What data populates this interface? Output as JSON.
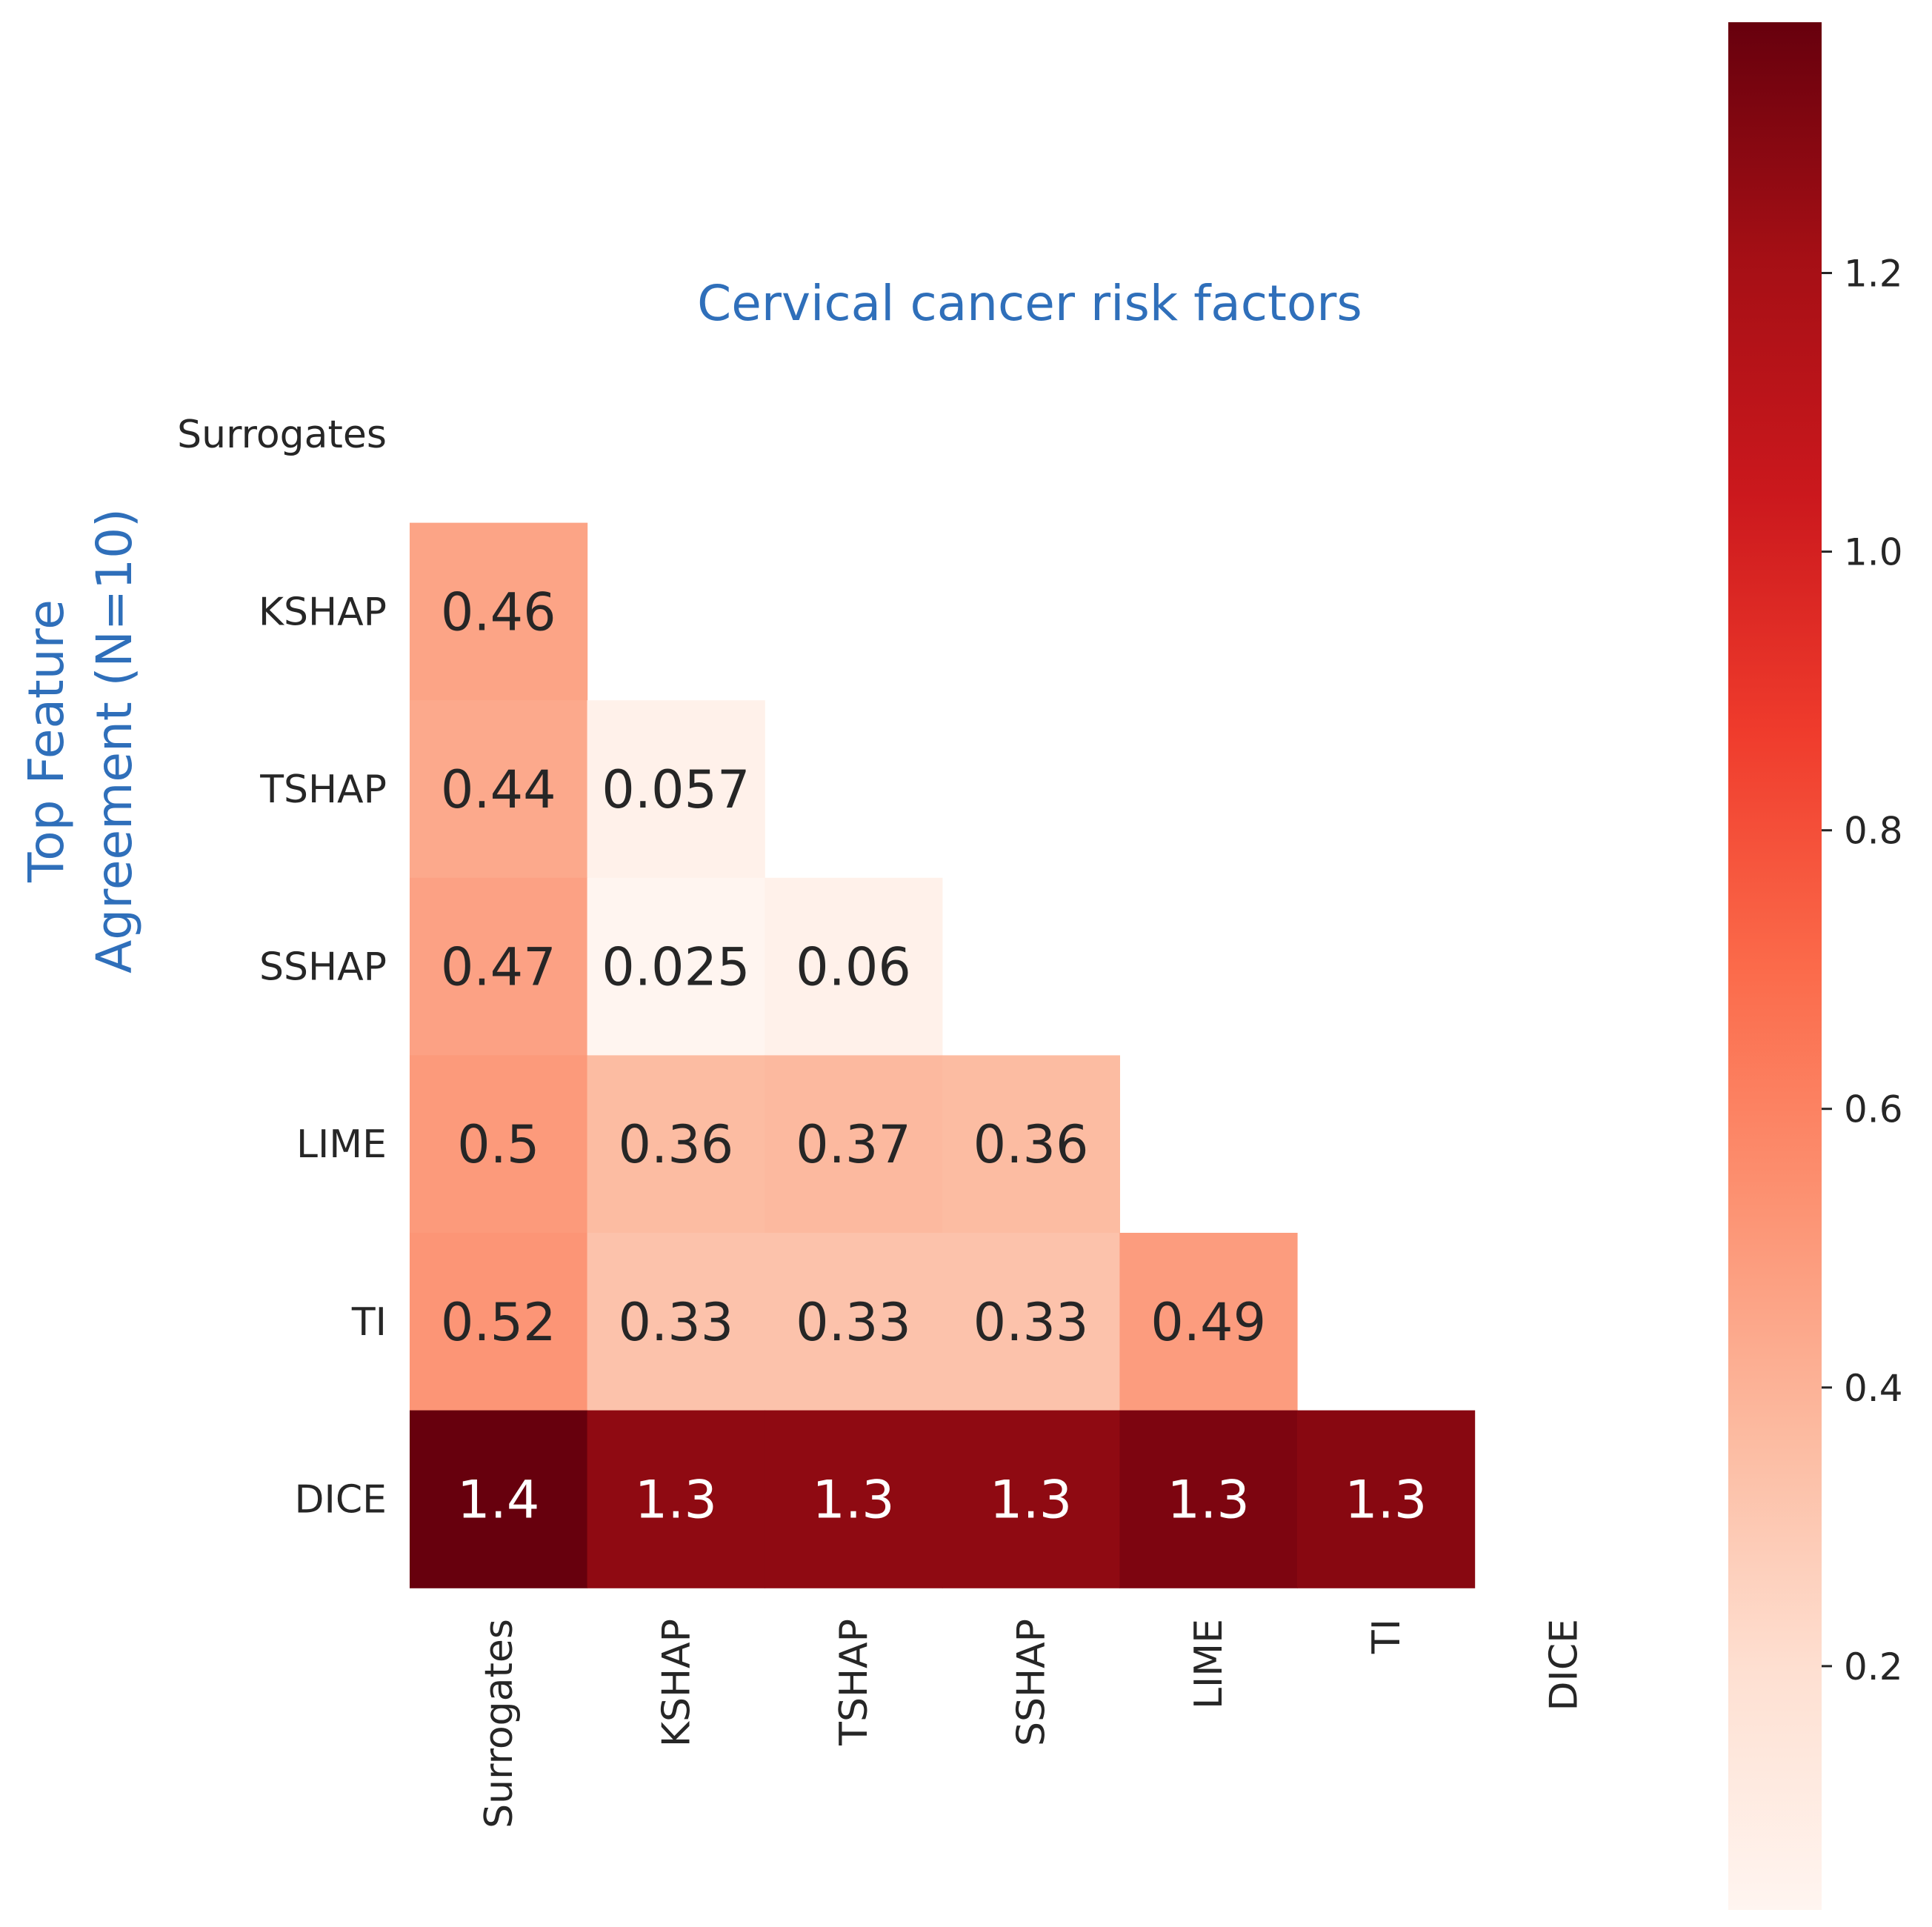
{
  "chart_data": {
    "type": "heatmap",
    "title": "Cervical cancer risk factors",
    "ylabel_lines": [
      "Top Feature",
      "Agreement (N=10)"
    ],
    "row_labels": [
      "Surrogates",
      "KSHAP",
      "TSHAP",
      "SSHAP",
      "LIME",
      "TI",
      "DICE"
    ],
    "col_labels": [
      "Surrogates",
      "KSHAP",
      "TSHAP",
      "SSHAP",
      "LIME",
      "TI",
      "DICE"
    ],
    "mask": "upper triangle incl. diagonal",
    "values": [
      [
        null,
        null,
        null,
        null,
        null,
        null,
        null
      ],
      [
        0.46,
        null,
        null,
        null,
        null,
        null,
        null
      ],
      [
        0.44,
        0.057,
        null,
        null,
        null,
        null,
        null
      ],
      [
        0.47,
        0.025,
        0.06,
        null,
        null,
        null,
        null
      ],
      [
        0.5,
        0.36,
        0.37,
        0.36,
        null,
        null,
        null
      ],
      [
        0.52,
        0.33,
        0.33,
        0.33,
        0.49,
        null,
        null
      ],
      [
        1.4,
        1.3,
        1.3,
        1.3,
        1.3,
        1.3,
        null
      ]
    ],
    "true_values": [
      [
        null,
        null,
        null,
        null,
        null,
        null,
        null
      ],
      [
        0.46,
        null,
        null,
        null,
        null,
        null,
        null
      ],
      [
        0.44,
        0.057,
        null,
        null,
        null,
        null,
        null
      ],
      [
        0.47,
        0.025,
        0.06,
        null,
        null,
        null,
        null
      ],
      [
        0.5,
        0.36,
        0.37,
        0.36,
        null,
        null,
        null
      ],
      [
        0.52,
        0.33,
        0.33,
        0.33,
        0.49,
        null,
        null
      ],
      [
        1.38,
        1.27,
        1.27,
        1.27,
        1.32,
        1.29,
        null
      ]
    ],
    "colormap": "Reds",
    "color_range": [
      0.025,
      1.38
    ],
    "colorbar_ticks": [
      "0.2",
      "0.4",
      "0.6",
      "0.8",
      "1.0",
      "1.2"
    ],
    "colorbar_tick_values": [
      0.2,
      0.4,
      0.6,
      0.8,
      1.0,
      1.2
    ],
    "grid": false
  }
}
